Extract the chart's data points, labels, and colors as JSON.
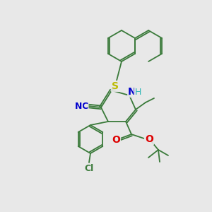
{
  "background_color": "#e8e8e8",
  "bond_color": "#3a7a3a",
  "atom_colors": {
    "N": "#0000cc",
    "NH": "#0000cc",
    "H": "#30b8b8",
    "O": "#dd0000",
    "S": "#bbbb00",
    "Cl": "#3a7a3a",
    "CN_C": "#0000cc",
    "CN_N": "#0000cc"
  },
  "figsize": [
    3.0,
    3.0
  ],
  "dpi": 100
}
